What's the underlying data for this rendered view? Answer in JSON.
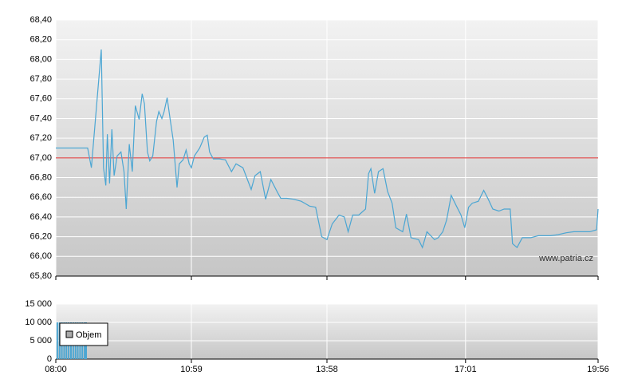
{
  "chart_data": [
    {
      "type": "line",
      "annotation": "www.patria.cz",
      "x": [
        "08:00",
        "08:42",
        "08:47",
        "09:00",
        "09:03",
        "09:06",
        "09:08",
        "09:11",
        "09:14",
        "09:17",
        "09:21",
        "09:26",
        "09:30",
        "09:33",
        "09:37",
        "09:41",
        "09:45",
        "09:50",
        "09:54",
        "09:57",
        "10:01",
        "10:04",
        "10:08",
        "10:13",
        "10:16",
        "10:20",
        "10:23",
        "10:27",
        "10:31",
        "10:35",
        "10:40",
        "10:43",
        "10:48",
        "10:52",
        "10:56",
        "10:59",
        "11:03",
        "11:10",
        "11:16",
        "11:20",
        "11:23",
        "11:28",
        "11:36",
        "11:44",
        "11:52",
        "11:58",
        "12:07",
        "12:18",
        "12:23",
        "12:30",
        "12:37",
        "12:44",
        "12:52",
        "12:57",
        "13:05",
        "13:14",
        "13:24",
        "13:35",
        "13:43",
        "13:51",
        "13:58",
        "14:05",
        "14:14",
        "14:21",
        "14:26",
        "14:32",
        "14:40",
        "14:49",
        "14:53",
        "14:56",
        "15:01",
        "15:06",
        "15:12",
        "15:18",
        "15:24",
        "15:29",
        "15:38",
        "15:43",
        "15:49",
        "15:59",
        "16:04",
        "16:10",
        "16:20",
        "16:25",
        "16:31",
        "16:36",
        "16:42",
        "16:49",
        "16:55",
        "17:00",
        "17:05",
        "17:10",
        "17:18",
        "17:25",
        "17:31",
        "17:37",
        "17:45",
        "17:52",
        "18:00",
        "18:03",
        "18:09",
        "18:16",
        "18:27",
        "18:37",
        "18:53",
        "19:03",
        "19:14",
        "19:24",
        "19:35",
        "19:45",
        "19:54",
        "19:56"
      ],
      "series": [
        {
          "color": "#4ba6d3",
          "values": [
            67.1,
            67.1,
            66.9,
            68.1,
            66.9,
            66.72,
            67.24,
            66.74,
            67.29,
            66.82,
            67.02,
            67.06,
            66.86,
            66.48,
            67.14,
            66.86,
            67.53,
            67.39,
            67.65,
            67.55,
            67.06,
            66.97,
            67.02,
            67.37,
            67.47,
            67.4,
            67.47,
            67.61,
            67.39,
            67.18,
            66.7,
            66.94,
            66.98,
            67.08,
            66.94,
            66.9,
            67.02,
            67.1,
            67.21,
            67.23,
            67.06,
            66.99,
            66.99,
            66.98,
            66.86,
            66.94,
            66.9,
            66.68,
            66.82,
            66.86,
            66.58,
            66.78,
            66.66,
            66.59,
            66.59,
            66.58,
            66.56,
            66.51,
            66.5,
            66.2,
            66.17,
            66.33,
            66.42,
            66.4,
            66.25,
            66.42,
            66.42,
            66.48,
            66.84,
            66.89,
            66.64,
            66.86,
            66.89,
            66.66,
            66.54,
            66.29,
            66.25,
            66.43,
            66.19,
            66.17,
            66.09,
            66.25,
            66.17,
            66.19,
            66.25,
            66.37,
            66.62,
            66.51,
            66.42,
            66.29,
            66.5,
            66.54,
            66.56,
            66.67,
            66.58,
            66.48,
            66.46,
            66.48,
            66.48,
            66.13,
            66.09,
            66.19,
            66.19,
            66.21,
            66.21,
            66.22,
            66.24,
            66.25,
            66.25,
            66.25,
            66.27,
            66.48
          ]
        }
      ],
      "reference_line": {
        "value": 67.0,
        "color": "#e03030"
      },
      "xlim": [
        "08:00",
        "19:56"
      ],
      "xticks": [
        "08:00",
        "10:59",
        "13:58",
        "17:01",
        "19:56"
      ],
      "ylim": [
        65.8,
        68.4
      ],
      "yticks": [
        {
          "value": 65.8,
          "label": "65,80"
        },
        {
          "value": 66.0,
          "label": "66,00"
        },
        {
          "value": 66.2,
          "label": "66,20"
        },
        {
          "value": 66.4,
          "label": "66,40"
        },
        {
          "value": 66.6,
          "label": "66,60"
        },
        {
          "value": 66.8,
          "label": "66,80"
        },
        {
          "value": 67.0,
          "label": "67,00"
        },
        {
          "value": 67.2,
          "label": "67,20"
        },
        {
          "value": 67.4,
          "label": "67,40"
        },
        {
          "value": 67.6,
          "label": "67,60"
        },
        {
          "value": 67.8,
          "label": "67,80"
        },
        {
          "value": 68.0,
          "label": "68,00"
        },
        {
          "value": 68.2,
          "label": "68,20"
        },
        {
          "value": 68.4,
          "label": "68,40"
        }
      ],
      "grid": true
    },
    {
      "type": "bar",
      "x": [
        "08:02",
        "08:05",
        "08:08",
        "08:11",
        "08:14",
        "08:17",
        "08:20",
        "08:23",
        "08:26",
        "08:29",
        "08:32",
        "08:35",
        "08:38",
        "08:40"
      ],
      "series": [
        {
          "name": "Objem",
          "color": "#4ba6d3",
          "values": [
            10000,
            10000,
            10000,
            10000,
            10000,
            10000,
            10000,
            10000,
            10000,
            10000,
            10000,
            10000,
            10000,
            10000
          ]
        }
      ],
      "legend": "upper-left",
      "xlim": [
        "08:00",
        "19:56"
      ],
      "xticks": [
        "08:00",
        "10:59",
        "13:58",
        "17:01",
        "19:56"
      ],
      "ylim": [
        0,
        15000
      ],
      "yticks": [
        0,
        {
          "value": 5000,
          "label": "5 000"
        },
        {
          "value": 10000,
          "label": "10 000"
        },
        {
          "value": 15000,
          "label": "15 000"
        }
      ],
      "grid": true
    }
  ]
}
